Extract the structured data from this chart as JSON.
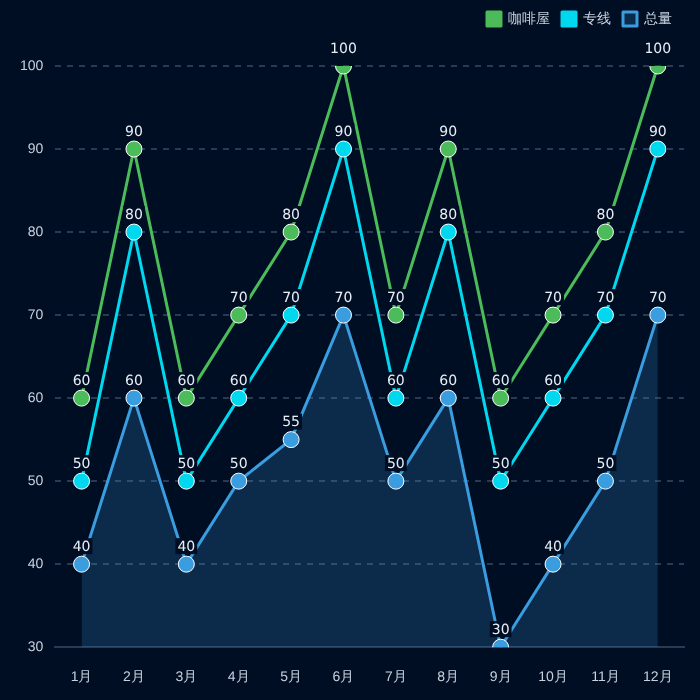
{
  "chart_data": {
    "type": "line",
    "categories": [
      "1月",
      "2月",
      "3月",
      "4月",
      "5月",
      "6月",
      "7月",
      "8月",
      "9月",
      "10月",
      "11月",
      "12月"
    ],
    "series": [
      {
        "name": "咖啡屋",
        "color": "#4cbb5a",
        "values": [
          60,
          90,
          60,
          70,
          80,
          100,
          70,
          90,
          60,
          70,
          80,
          100
        ]
      },
      {
        "name": "专线",
        "color": "#00d8f0",
        "values": [
          50,
          80,
          50,
          60,
          70,
          90,
          60,
          80,
          50,
          60,
          70,
          90
        ]
      },
      {
        "name": "总量",
        "type": "area",
        "color": "#3a9de0",
        "values": [
          40,
          60,
          40,
          50,
          55,
          70,
          50,
          60,
          30,
          40,
          50,
          70
        ]
      }
    ],
    "ylim": [
      30,
      100
    ],
    "yticks": [
      30,
      40,
      50,
      60,
      70,
      80,
      90,
      100
    ],
    "grid": "y",
    "legend": "top right",
    "marker": "circle",
    "line_style": "solid",
    "data_labels": true
  }
}
